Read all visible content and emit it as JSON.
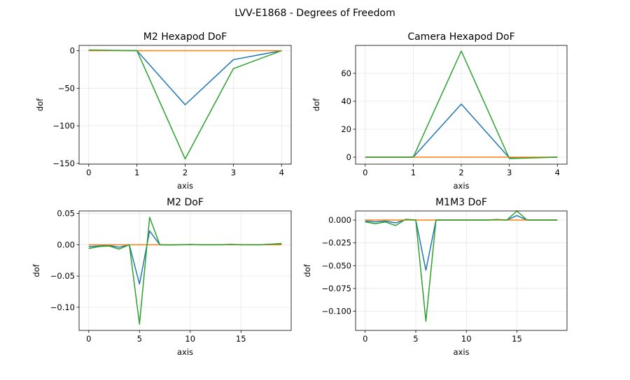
{
  "figure": {
    "title": "LVV-E1868 - Degrees of Freedom"
  },
  "colors": {
    "series1": "#1f77b4",
    "series2": "#ff7f0e",
    "series3": "#2ca02c"
  },
  "chart_data": [
    {
      "type": "line",
      "title": "M2 Hexapod DoF",
      "xlabel": "axis",
      "ylabel": "dof",
      "xlim": [
        -0.2,
        4.2
      ],
      "ylim": [
        -151,
        7
      ],
      "xticks": [
        0,
        1,
        2,
        3,
        4
      ],
      "yticks": [
        0,
        -50,
        -100,
        -150
      ],
      "grid": true,
      "x": [
        0,
        1,
        2,
        3,
        4
      ],
      "series": [
        {
          "values": [
            0.5,
            0,
            -72,
            -12,
            0
          ],
          "color": "#1f77b4"
        },
        {
          "values": [
            0,
            0,
            0,
            0,
            0
          ],
          "color": "#ff7f0e"
        },
        {
          "values": [
            0.8,
            0,
            -144,
            -24,
            0
          ],
          "color": "#2ca02c"
        }
      ]
    },
    {
      "type": "line",
      "title": "Camera Hexapod DoF",
      "xlabel": "axis",
      "ylabel": "dof",
      "xlim": [
        -0.2,
        4.2
      ],
      "ylim": [
        -5,
        80
      ],
      "xticks": [
        0,
        1,
        2,
        3,
        4
      ],
      "yticks": [
        0,
        20,
        40,
        60
      ],
      "grid": true,
      "x": [
        0,
        1,
        2,
        3,
        4
      ],
      "series": [
        {
          "values": [
            0,
            0,
            38,
            -0.5,
            0
          ],
          "color": "#1f77b4"
        },
        {
          "values": [
            0,
            0,
            0,
            0,
            0
          ],
          "color": "#ff7f0e"
        },
        {
          "values": [
            0,
            0,
            76,
            -1,
            0
          ],
          "color": "#2ca02c"
        }
      ]
    },
    {
      "type": "line",
      "title": "M2 DoF",
      "xlabel": "axis",
      "ylabel": "dof",
      "xlim": [
        -0.95,
        19.95
      ],
      "ylim": [
        -0.137,
        0.054
      ],
      "xticks": [
        0,
        5,
        10,
        15
      ],
      "yticks": [
        0.05,
        0.0,
        -0.05,
        -0.1
      ],
      "ytick_labels": [
        "0.05",
        "0.00",
        "−0.05",
        "−0.10"
      ],
      "grid": true,
      "x": [
        0,
        1,
        2,
        3,
        4,
        5,
        6,
        7,
        8,
        9,
        10,
        11,
        12,
        13,
        14,
        15,
        16,
        17,
        18,
        19
      ],
      "series": [
        {
          "values": [
            -0.003,
            -0.002,
            -0.001,
            -0.004,
            0.0,
            -0.063,
            0.022,
            0.0,
            -0.0002,
            0.0,
            0.0002,
            0.0,
            0.0,
            0.0,
            0.0003,
            0.0,
            0.0,
            0.0,
            0.0005,
            0.001
          ],
          "color": "#1f77b4"
        },
        {
          "values": [
            0,
            0,
            0,
            0,
            0,
            0,
            0,
            0,
            0,
            0,
            0,
            0,
            0,
            0,
            0,
            0,
            0,
            0,
            0,
            0
          ],
          "color": "#ff7f0e"
        },
        {
          "values": [
            -0.006,
            -0.003,
            -0.002,
            -0.007,
            0.0,
            -0.127,
            0.044,
            0.0,
            -0.0004,
            0.0,
            0.0003,
            0.0,
            0.0,
            0.0,
            0.0005,
            0.0,
            0.0,
            0.0,
            0.001,
            0.002
          ],
          "color": "#2ca02c"
        }
      ]
    },
    {
      "type": "line",
      "title": "M1M3 DoF",
      "xlabel": "axis",
      "ylabel": "dof",
      "xlim": [
        -0.95,
        19.95
      ],
      "ylim": [
        -0.121,
        0.01
      ],
      "xticks": [
        0,
        5,
        10,
        15
      ],
      "yticks": [
        0.0,
        -0.025,
        -0.05,
        -0.075,
        -0.1
      ],
      "ytick_labels": [
        "0.000",
        "−0.025",
        "−0.050",
        "−0.075",
        "−0.100"
      ],
      "grid": true,
      "x": [
        0,
        1,
        2,
        3,
        4,
        5,
        6,
        7,
        8,
        9,
        10,
        11,
        12,
        13,
        14,
        15,
        16,
        17,
        18,
        19
      ],
      "series": [
        {
          "values": [
            -0.001,
            -0.002,
            -0.001,
            -0.003,
            0.0004,
            0.0,
            -0.055,
            0.0,
            0.0,
            0.0,
            0.0,
            0.0,
            0.0,
            0.0003,
            0.0,
            0.005,
            0.0,
            0.0,
            0.0,
            0.0
          ],
          "color": "#1f77b4"
        },
        {
          "values": [
            0,
            0,
            0,
            0,
            0,
            0,
            0,
            0,
            0,
            0,
            0,
            0,
            0,
            0,
            0,
            0,
            0,
            0,
            0,
            0
          ],
          "color": "#ff7f0e"
        },
        {
          "values": [
            -0.002,
            -0.004,
            -0.002,
            -0.006,
            0.0008,
            0.0,
            -0.111,
            0.0,
            0.0,
            0.0,
            0.0,
            0.0,
            0.0,
            0.0006,
            0.0,
            0.01,
            0.0,
            0.0,
            0.0,
            0.0
          ],
          "color": "#2ca02c"
        }
      ]
    }
  ]
}
